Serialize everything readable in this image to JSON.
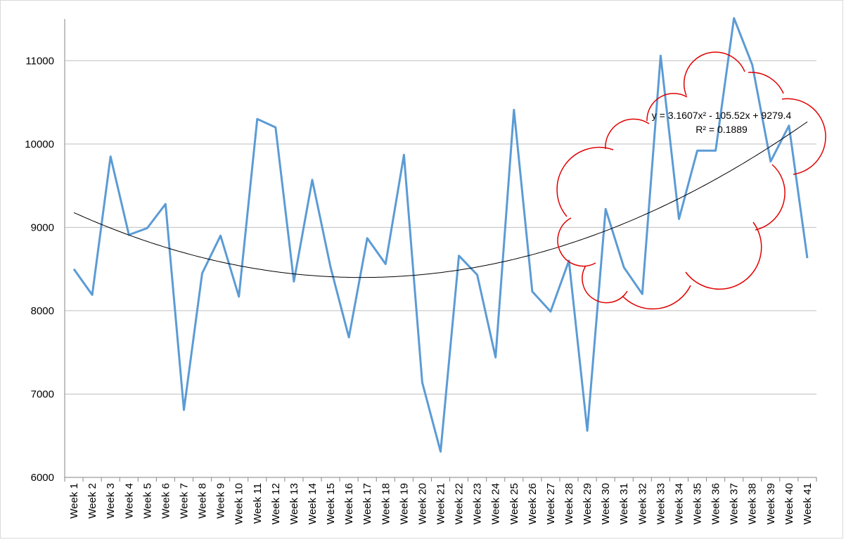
{
  "chart_data": {
    "type": "line",
    "title": "",
    "xlabel": "",
    "ylabel": "",
    "categories": [
      "Week 1",
      "Week 2",
      "Week 3",
      "Week 4",
      "Week 5",
      "Week 6",
      "Week 7",
      "Week 8",
      "Week 9",
      "Week 10",
      "Week 11",
      "Week 12",
      "Week 13",
      "Week 14",
      "Week 15",
      "Week 16",
      "Week 17",
      "Week 18",
      "Week 19",
      "Week 20",
      "Week 21",
      "Week 22",
      "Week 23",
      "Week 24",
      "Week 25",
      "Week 26",
      "Week 27",
      "Week 28",
      "Week 29",
      "Week 30",
      "Week 31",
      "Week 32",
      "Week 33",
      "Week 34",
      "Week 35",
      "Week 36",
      "Week 37",
      "Week 38",
      "Week 39",
      "Week 40",
      "Week 41"
    ],
    "series": [
      {
        "values": [
          8500,
          8190,
          9850,
          8910,
          8990,
          9280,
          6810,
          8450,
          8900,
          8170,
          10300,
          10200,
          8350,
          9570,
          8520,
          7680,
          8870,
          8560,
          9870,
          7140,
          6310,
          8660,
          8430,
          7440,
          10410,
          8230,
          7990,
          8600,
          6560,
          9220,
          8520,
          8200,
          11060,
          9100,
          9920,
          9920,
          11510,
          10950,
          9790,
          10220,
          8630
        ],
        "color": "#5b9bd5"
      }
    ],
    "trendline": {
      "type": "polynomial",
      "order": 2,
      "coefficients": [
        3.1607,
        -105.52,
        9279.4
      ],
      "color": "#000000",
      "equation_text": "y = 3.1607x² - 105.52x + 9279.4",
      "r2_text": "R² = 0.1889"
    },
    "annotation": {
      "shape": "cloud",
      "color": "#e00000"
    },
    "ylim": [
      6000,
      11500
    ],
    "yticks": [
      6000,
      7000,
      8000,
      9000,
      10000,
      11000
    ],
    "grid": true,
    "legend": "none"
  }
}
